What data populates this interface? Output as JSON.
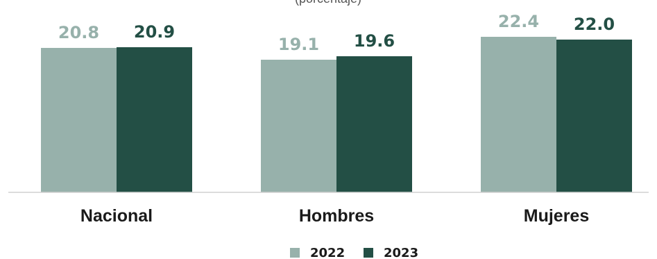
{
  "chart_data": {
    "type": "bar",
    "subtitle": "(porcentaje)",
    "categories": [
      "Nacional",
      "Hombres",
      "Mujeres"
    ],
    "series": [
      {
        "name": "2022",
        "values": [
          20.8,
          19.1,
          22.4
        ],
        "color": "#97b1ab"
      },
      {
        "name": "2023",
        "values": [
          20.9,
          19.6,
          22.0
        ],
        "color": "#234f45"
      }
    ],
    "value_labels": {
      "2022": [
        "20.8",
        "19.1",
        "22.4"
      ],
      "2023": [
        "20.9",
        "19.6",
        "22.0"
      ]
    },
    "ylim": [
      0,
      22.4
    ],
    "grid": false,
    "legend_position": "bottom",
    "axis_color": "#d0d0d0"
  }
}
